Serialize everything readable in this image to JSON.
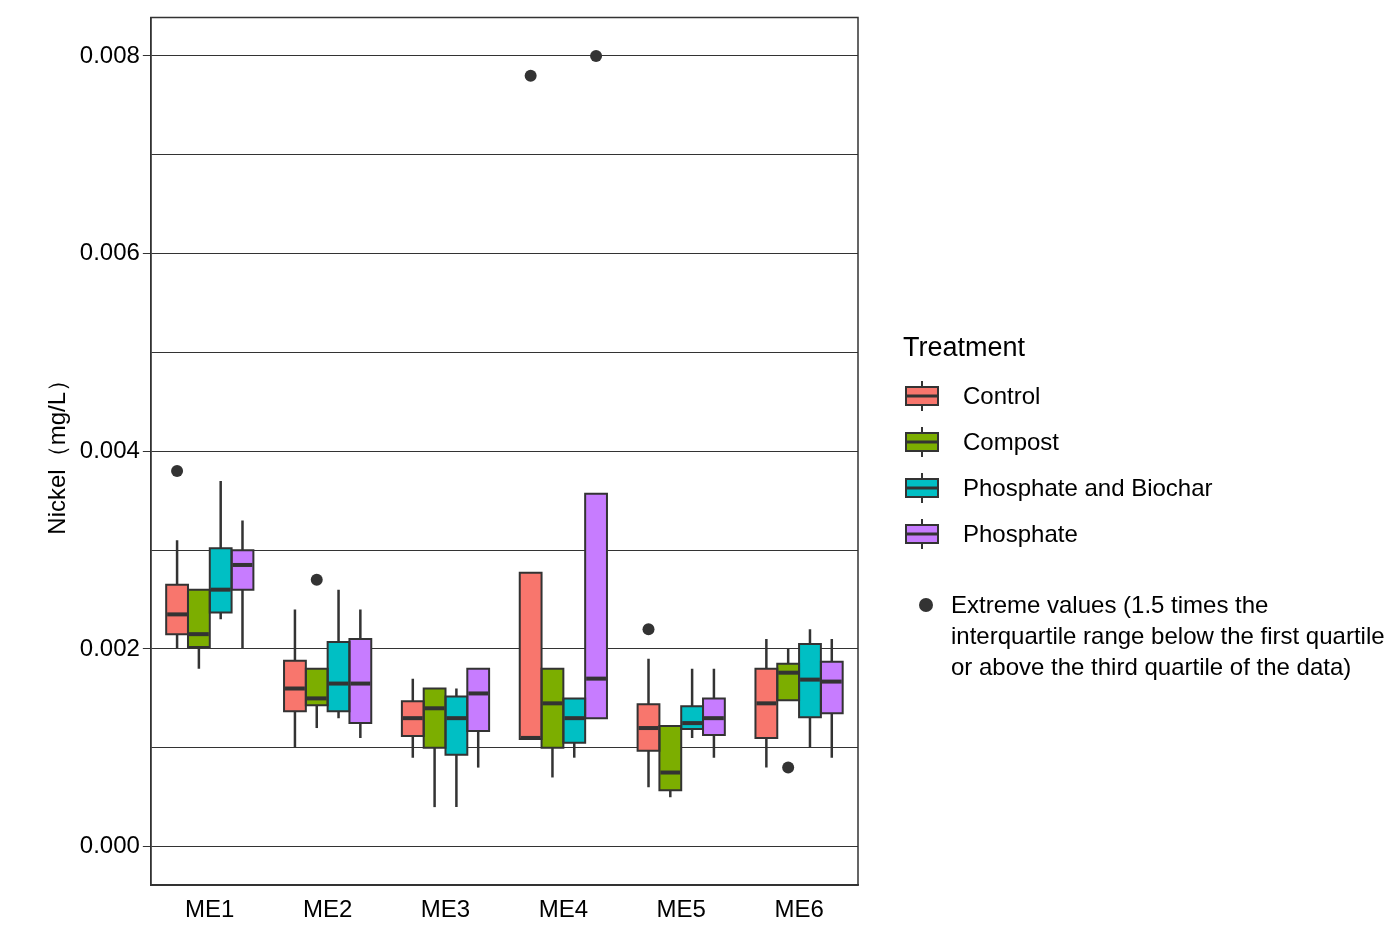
{
  "chart_data": {
    "type": "box",
    "ylabel": "Nickel（mg/L）",
    "legend_title": "Treatment",
    "legend": "right",
    "grid": "y",
    "categories": [
      "ME1",
      "ME2",
      "ME3",
      "ME4",
      "ME5",
      "ME6"
    ],
    "ylim": [
      -0.00039,
      0.00839
    ],
    "yticks": [
      {
        "value": 0,
        "label": "0.000"
      },
      {
        "value": 0.001,
        "label": null
      },
      0.002,
      {
        "value": 0.003,
        "label": null
      },
      0.004,
      {
        "value": 0.005,
        "label": null
      },
      0.006,
      {
        "value": 0.007,
        "label": null
      },
      0.008
    ],
    "annotations": [
      "Extreme values (1.5 times the interquartile range below the first quartile or above the third quartile of the data)"
    ],
    "series": [
      {
        "name": "Control",
        "color": "#f8766d",
        "boxes": [
          {
            "low": 0.002,
            "q1": 0.00215,
            "median": 0.00235,
            "q3": 0.00265,
            "high": 0.0031,
            "outliers": [
              0.0038
            ]
          },
          {
            "low": 0.001,
            "q1": 0.00137,
            "median": 0.0016,
            "q3": 0.00188,
            "high": 0.0024
          },
          {
            "low": 0.0009,
            "q1": 0.00112,
            "median": 0.0013,
            "q3": 0.00147,
            "high": 0.0017
          },
          {
            "low": 0.00109,
            "q1": 0.00109,
            "median": 0.0011,
            "q3": 0.00277,
            "high": 0.00277,
            "outliers": [
              0.0078
            ]
          },
          {
            "low": 0.0006,
            "q1": 0.00097,
            "median": 0.0012,
            "q3": 0.00144,
            "high": 0.0019,
            "outliers": [
              0.0022
            ]
          },
          {
            "low": 0.0008,
            "q1": 0.0011,
            "median": 0.00145,
            "q3": 0.0018,
            "high": 0.0021
          }
        ]
      },
      {
        "name": "Compost",
        "color": "#7cae00",
        "boxes": [
          {
            "low": 0.0018,
            "q1": 0.00202,
            "median": 0.00215,
            "q3": 0.0026,
            "high": 0.0026
          },
          {
            "low": 0.0012,
            "q1": 0.00143,
            "median": 0.0015,
            "q3": 0.0018,
            "high": 0.0018,
            "outliers": [
              0.0027
            ]
          },
          {
            "low": 0.0004,
            "q1": 0.001,
            "median": 0.0014,
            "q3": 0.0016,
            "high": 0.0016
          },
          {
            "low": 0.0007,
            "q1": 0.001,
            "median": 0.00145,
            "q3": 0.0018,
            "high": 0.0018
          },
          {
            "low": 0.0005,
            "q1": 0.00057,
            "median": 0.00075,
            "q3": 0.00122,
            "high": 0.00122
          },
          {
            "low": 0.00148,
            "q1": 0.00148,
            "median": 0.00176,
            "q3": 0.00185,
            "high": 0.002,
            "outliers": [
              0.0008
            ]
          }
        ]
      },
      {
        "name": "Phosphate and Biochar",
        "color": "#00bfc4",
        "boxes": [
          {
            "low": 0.0023,
            "q1": 0.00237,
            "median": 0.0026,
            "q3": 0.00302,
            "high": 0.0037
          },
          {
            "low": 0.0013,
            "q1": 0.00137,
            "median": 0.00165,
            "q3": 0.00207,
            "high": 0.0026
          },
          {
            "low": 0.0004,
            "q1": 0.00093,
            "median": 0.0013,
            "q3": 0.00152,
            "high": 0.0016
          },
          {
            "low": 0.0009,
            "q1": 0.00105,
            "median": 0.0013,
            "q3": 0.0015,
            "high": 0.0015
          },
          {
            "low": 0.0011,
            "q1": 0.00119,
            "median": 0.00125,
            "q3": 0.00142,
            "high": 0.0018
          },
          {
            "low": 0.001,
            "q1": 0.00131,
            "median": 0.00169,
            "q3": 0.00205,
            "high": 0.0022
          }
        ]
      },
      {
        "name": "Phosphate",
        "color": "#c77cff",
        "boxes": [
          {
            "low": 0.002,
            "q1": 0.0026,
            "median": 0.00285,
            "q3": 0.003,
            "high": 0.0033
          },
          {
            "low": 0.0011,
            "q1": 0.00125,
            "median": 0.00165,
            "q3": 0.0021,
            "high": 0.0024
          },
          {
            "low": 0.0008,
            "q1": 0.00117,
            "median": 0.00155,
            "q3": 0.0018,
            "high": 0.0018
          },
          {
            "low": 0.0013,
            "q1": 0.0013,
            "median": 0.0017,
            "q3": 0.00357,
            "high": 0.00357,
            "outliers": [
              0.008
            ]
          },
          {
            "low": 0.0009,
            "q1": 0.00113,
            "median": 0.0013,
            "q3": 0.0015,
            "high": 0.0018
          },
          {
            "low": 0.0009,
            "q1": 0.00135,
            "median": 0.00167,
            "q3": 0.00187,
            "high": 0.0021
          }
        ]
      }
    ]
  }
}
